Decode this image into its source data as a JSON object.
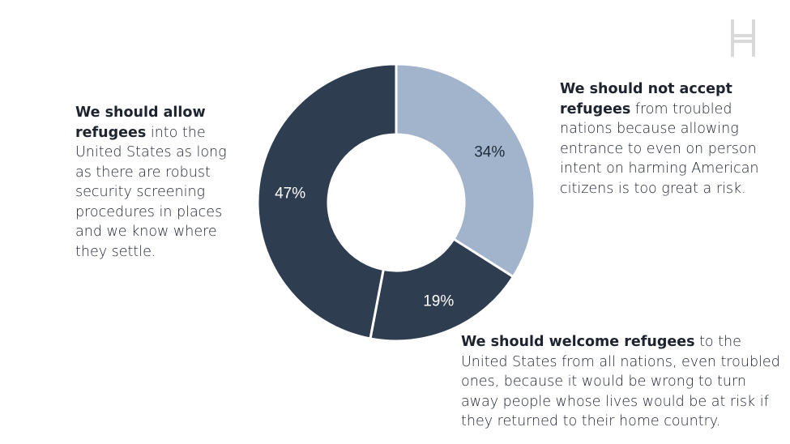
{
  "brand": {
    "logo_icon": "h-ladder-logo-icon",
    "logo_color": "#d9d9d9"
  },
  "chart_data": {
    "type": "donut",
    "slices": [
      {
        "value": 34,
        "label": "34%",
        "color": "#a2b4cb",
        "label_color": "#1e2a3a"
      },
      {
        "value": 19,
        "label": "19%",
        "color": "#2e3d50",
        "label_color": "#ffffff"
      },
      {
        "value": 47,
        "label": "47%",
        "color": "#2e3d50",
        "label_color": "#ffffff"
      }
    ]
  },
  "annotations": {
    "left": {
      "bold": "We should allow refugees",
      "rest": " into the United States as long as there are robust security screening procedures in places and we know where they settle."
    },
    "right": {
      "bold": "We should not accept refugees",
      "rest": " from troubled nations because allowing entrance to even on person intent on harming American citizens is too great a risk."
    },
    "bottom": {
      "bold": "We should welcome refugees",
      "rest": " to the United States from all nations, even troubled ones, because it would be wrong to turn away people whose lives would be at risk if they returned to their home country."
    }
  }
}
